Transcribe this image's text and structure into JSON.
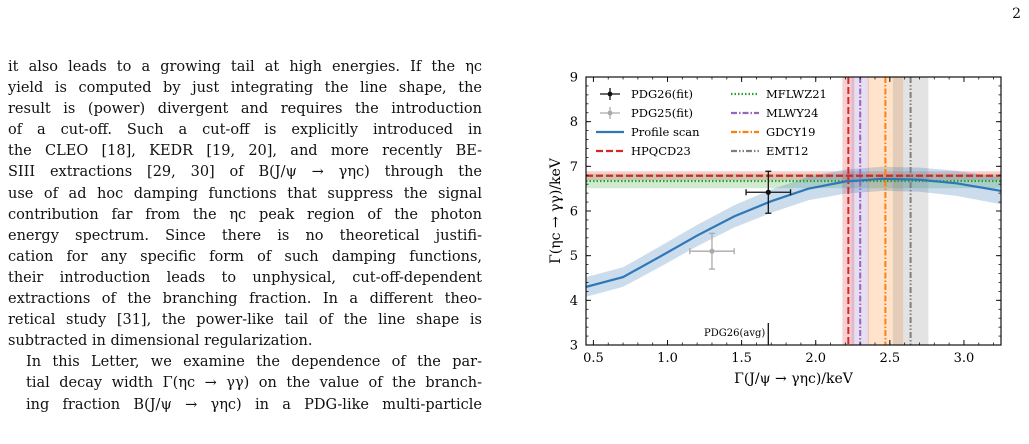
{
  "page_number": "2",
  "text": {
    "lines": [
      "it also leads to a growing tail at high energies. If the ηc",
      "yield is computed by just integrating the line shape, the",
      "result is (power) divergent and requires the introduction",
      "of a cut-off. Such a cut-off is explicitly introduced in",
      "the CLEO [18], KEDR [19, 20], and more recently BE-",
      "SIII extractions [29, 30] of B(J/ψ → γηc) through the",
      "use of ad hoc damping functions that suppress the signal",
      "contribution far from the ηc peak region of the photon",
      "energy spectrum. Since there is no theoretical justifi-",
      "cation for any specific form of such damping functions,",
      "their introduction leads to unphysical, cut-off-dependent",
      "extractions of the branching fraction. In a different theo-",
      "retical study [31], the power-like tail of the line shape is",
      "subtracted in dimensional regularization."
    ],
    "para2_lines": [
      "In this Letter, we examine the dependence of the par-",
      "tial decay width Γ(ηc → γγ) on the value of the branch-",
      "ing fraction B(J/ψ → γηc) in a PDG-like multi-particle"
    ]
  },
  "chart_data": {
    "type": "line",
    "xlabel": "Γ(J/ψ → γηc)/keV",
    "ylabel": "Γ(ηc → γγ)/keV",
    "xlim": [
      0.45,
      3.25
    ],
    "ylim": [
      3,
      9
    ],
    "x_ticks": [
      "0.5",
      "1.0",
      "1.5",
      "2.0",
      "2.5",
      "3.0"
    ],
    "y_ticks": [
      "3",
      "4",
      "5",
      "6",
      "7",
      "8",
      "9"
    ],
    "legend": {
      "placement": "top-left",
      "entries": [
        {
          "label": "PDG26(fit)",
          "color": "#111111",
          "style": "errorbar"
        },
        {
          "label": "PDG25(fit)",
          "color": "#aaaaaa",
          "style": "errorbar"
        },
        {
          "label": "Profile scan",
          "color": "#2f77b8",
          "style": "solid"
        },
        {
          "label": "HPQCD23",
          "color": "#d62728",
          "style": "dashed"
        },
        {
          "label": "MFLWZ21",
          "color": "#2ca02c",
          "style": "dotted"
        },
        {
          "label": "MLWY24",
          "color": "#9467bd",
          "style": "dashdot"
        },
        {
          "label": "GDCY19",
          "color": "#ff7f0e",
          "style": "dashdot"
        },
        {
          "label": "EMT12",
          "color": "#7f7f7f",
          "style": "dashdotdot"
        }
      ]
    },
    "profile_scan": {
      "x": [
        0.45,
        0.7,
        0.95,
        1.2,
        1.45,
        1.7,
        1.95,
        2.2,
        2.45,
        2.7,
        2.95,
        3.25
      ],
      "y": [
        4.3,
        4.52,
        4.98,
        5.45,
        5.88,
        6.22,
        6.5,
        6.66,
        6.72,
        6.7,
        6.62,
        6.45
      ],
      "band_halfwidth": [
        0.22,
        0.22,
        0.23,
        0.24,
        0.25,
        0.26,
        0.26,
        0.27,
        0.27,
        0.27,
        0.28,
        0.3
      ]
    },
    "points": [
      {
        "name": "PDG26(fit)",
        "x": 1.68,
        "y": 6.42,
        "xerr": 0.15,
        "yerr": 0.47,
        "color": "#111111"
      },
      {
        "name": "PDG25(fit)",
        "x": 1.3,
        "y": 5.1,
        "xerr": 0.15,
        "yerr": 0.4,
        "color": "#aaaaaa"
      }
    ],
    "horizontal_bands": [
      {
        "name": "HPQCD23",
        "y": 6.79,
        "halfwidth": 0.1,
        "color": "#d62728"
      },
      {
        "name": "MFLWZ21",
        "y": 6.67,
        "halfwidth": 0.16,
        "color": "#2ca02c"
      }
    ],
    "vertical_bands": [
      {
        "name": "HPQCD23",
        "x": 2.22,
        "halfwidth": 0.04,
        "color": "#d62728"
      },
      {
        "name": "MLWY24",
        "x": 2.3,
        "halfwidth": 0.06,
        "color": "#9467bd"
      },
      {
        "name": "GDCY19",
        "x": 2.47,
        "halfwidth": 0.12,
        "color": "#ff7f0e"
      },
      {
        "name": "EMT12",
        "x": 2.64,
        "halfwidth": 0.12,
        "color": "#7f7f7f"
      }
    ],
    "annotation": {
      "text": "PDG26(avg)",
      "x": 1.68
    }
  }
}
